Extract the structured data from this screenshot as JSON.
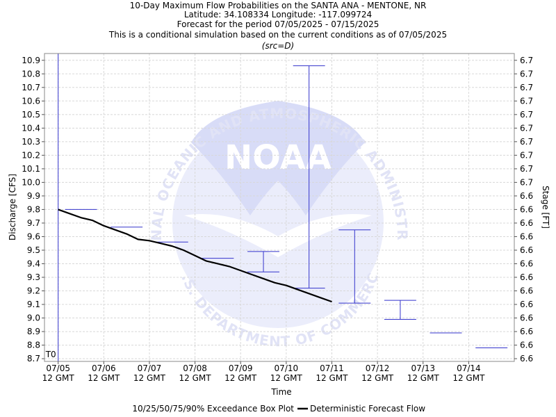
{
  "chart_data": {
    "type": "box_and_line",
    "title_lines": [
      "10-Day Maximum Flow Probabilities on the SANTA ANA - MENTONE, NR",
      "Latitude: 34.108334 Longitude: -117.099724",
      "Forecast for the period 07/05/2025 - 07/15/2025",
      "This is a conditional simulation based on the current conditions as of 07/05/2025"
    ],
    "subtitle": "(src=D)",
    "xlabel": "Time",
    "ylabel_left": "Discharge [CFS]",
    "ylabel_right": "Stage [FT]",
    "x_ticks": [
      {
        "date": "07/05",
        "sub": "12 GMT"
      },
      {
        "date": "07/06",
        "sub": "12 GMT"
      },
      {
        "date": "07/07",
        "sub": "12 GMT"
      },
      {
        "date": "07/08",
        "sub": "12 GMT"
      },
      {
        "date": "07/09",
        "sub": "12 GMT"
      },
      {
        "date": "07/10",
        "sub": "12 GMT"
      },
      {
        "date": "07/11",
        "sub": "12 GMT"
      },
      {
        "date": "07/12",
        "sub": "12 GMT"
      },
      {
        "date": "07/13",
        "sub": "12 GMT"
      },
      {
        "date": "07/14",
        "sub": "12 GMT"
      }
    ],
    "x_range_days": [
      -0.3,
      10.0
    ],
    "ylim": [
      8.68,
      10.95
    ],
    "y_ticks": [
      8.7,
      8.8,
      8.9,
      9.0,
      9.1,
      9.2,
      9.3,
      9.4,
      9.5,
      9.6,
      9.7,
      9.8,
      9.9,
      10.0,
      10.1,
      10.2,
      10.3,
      10.4,
      10.5,
      10.6,
      10.7,
      10.8,
      10.9
    ],
    "y_tick_labels": [
      "8.7",
      "8.8",
      "8.9",
      "9.0",
      "9.1",
      "9.2",
      "9.3",
      "9.4",
      "9.5",
      "9.6",
      "9.7",
      "9.8",
      "9.9",
      "10.0",
      "10.1",
      "10.2",
      "10.3",
      "10.4",
      "10.5",
      "10.6",
      "10.7",
      "10.8",
      "10.9"
    ],
    "right_tick_labels": [
      "6.6",
      "6.6",
      "6.6",
      "6.6",
      "6.6",
      "6.6",
      "6.6",
      "6.6",
      "6.6",
      "6.6",
      "6.6",
      "6.6",
      "6.6",
      "6.7",
      "6.7",
      "6.7",
      "6.7",
      "6.7",
      "6.7",
      "6.7",
      "6.7",
      "6.7",
      "6.7"
    ],
    "t0_label": "T0",
    "t0_day": 0,
    "box_plots": [
      {
        "day": 0.5,
        "p10": 9.8,
        "p25": 9.8,
        "p50": 9.8,
        "p75": 9.8,
        "p90": 9.8
      },
      {
        "day": 1.5,
        "p10": 9.67,
        "p25": 9.67,
        "p50": 9.67,
        "p75": 9.67,
        "p90": 9.67
      },
      {
        "day": 2.5,
        "p10": 9.56,
        "p25": 9.56,
        "p50": 9.56,
        "p75": 9.56,
        "p90": 9.56
      },
      {
        "day": 3.5,
        "p10": 9.44,
        "p25": 9.44,
        "p50": 9.44,
        "p75": 9.44,
        "p90": 9.44
      },
      {
        "day": 4.5,
        "p10": 9.34,
        "p25": 9.34,
        "p50": 9.34,
        "p75": 9.34,
        "p90": 9.49
      },
      {
        "day": 5.5,
        "p10": 9.22,
        "p25": 9.22,
        "p50": 9.22,
        "p75": 9.22,
        "p90": 10.86
      },
      {
        "day": 6.5,
        "p10": 9.11,
        "p25": 9.11,
        "p50": 9.11,
        "p75": 9.11,
        "p90": 9.65
      },
      {
        "day": 7.5,
        "p10": 8.99,
        "p25": 8.99,
        "p50": 8.99,
        "p75": 8.99,
        "p90": 9.13
      },
      {
        "day": 8.5,
        "p10": 8.89,
        "p25": 8.89,
        "p50": 8.89,
        "p75": 8.89,
        "p90": 8.89
      },
      {
        "day": 9.5,
        "p10": 8.78,
        "p25": 8.78,
        "p50": 8.78,
        "p75": 8.78,
        "p90": 8.78
      }
    ],
    "deterministic": {
      "x_days": [
        0.0,
        0.25,
        0.5,
        0.75,
        1.0,
        1.25,
        1.5,
        1.75,
        2.0,
        2.25,
        2.5,
        2.75,
        3.0,
        3.25,
        3.5,
        3.75,
        4.0,
        4.25,
        4.5,
        4.75,
        5.0,
        5.25,
        5.5,
        5.75,
        6.0
      ],
      "values": [
        9.8,
        9.77,
        9.74,
        9.72,
        9.68,
        9.65,
        9.62,
        9.58,
        9.57,
        9.55,
        9.53,
        9.5,
        9.46,
        9.42,
        9.4,
        9.38,
        9.35,
        9.32,
        9.29,
        9.26,
        9.24,
        9.21,
        9.18,
        9.15,
        9.12
      ]
    },
    "legend": {
      "box_label": "10/25/50/75/90% Exceedance Box Plot",
      "line_label": "Deterministic Forecast Flow",
      "position": "bottom"
    },
    "watermark": {
      "org": "NOAA",
      "ring_text": "NATIONAL OCEANIC AND ATMOSPHERIC ADMINISTRATION",
      "bottom_text": "U.S. DEPARTMENT OF COMMERCE"
    },
    "colors": {
      "box": "#3333cc",
      "line": "#000000",
      "t0_line": "#3333cc",
      "grid": "#d8d8d8",
      "watermark": "#d8dcf6"
    },
    "grid": true
  }
}
